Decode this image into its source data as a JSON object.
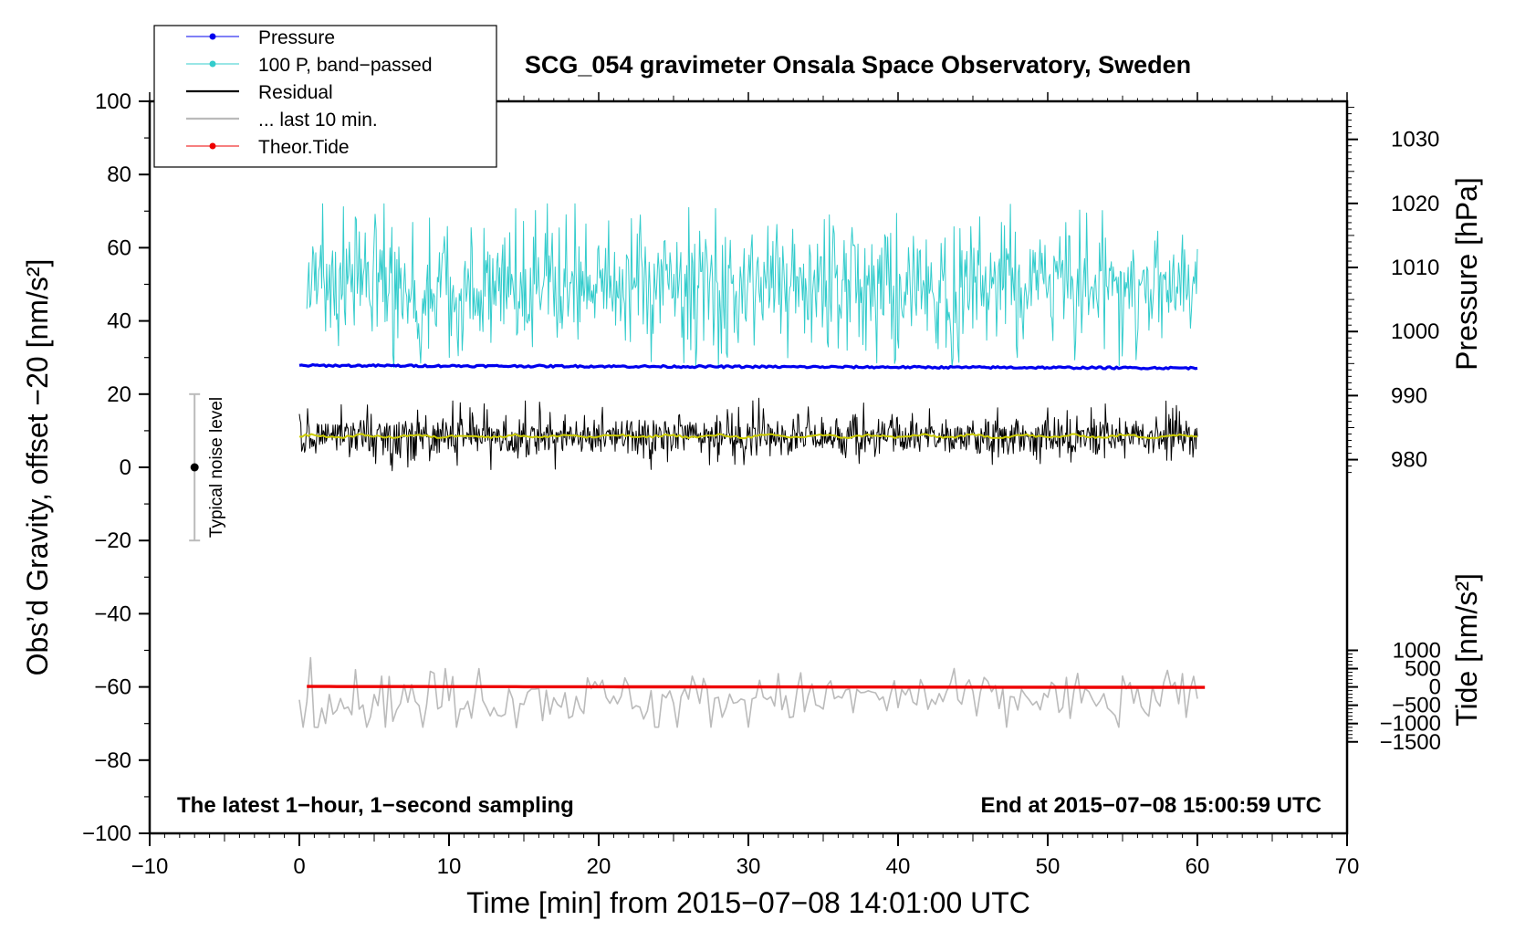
{
  "chart_data": {
    "type": "line",
    "title": "SCG_054 gravimeter Onsala Space Observatory, Sweden",
    "xlabel": "Time [min] from 2015−07−08 14:01:00 UTC",
    "ylabel_left": "Obs’d Gravity, offset −20 [nm/s²]",
    "ylabel_right_pressure": "Pressure [hPa]",
    "ylabel_right_tide": "Tide [nm/s²]",
    "xlim": [
      -10,
      70
    ],
    "ylim_left": [
      -100,
      100
    ],
    "xticks": [
      -10,
      0,
      10,
      20,
      30,
      40,
      50,
      60,
      70
    ],
    "xtick_labels": [
      "−10",
      "0",
      "10",
      "20",
      "30",
      "40",
      "50",
      "60",
      "70"
    ],
    "yticks_left": [
      -100,
      -80,
      -60,
      -40,
      -20,
      0,
      20,
      40,
      60,
      80,
      100
    ],
    "ytick_labels_left": [
      "−100",
      "−80",
      "−60",
      "−40",
      "−20",
      "0",
      "20",
      "40",
      "60",
      "80",
      "100"
    ],
    "pressure_axis": {
      "ticks": [
        980,
        990,
        1000,
        1010,
        1020,
        1030
      ],
      "tick_labels": [
        "980",
        "990",
        "1000",
        "1010",
        "1020",
        "1030"
      ],
      "scale": {
        "value_at_left0": 978.8,
        "per_left_unit": 0.5714
      }
    },
    "tide_axis": {
      "ticks": [
        -1500,
        -1000,
        -500,
        0,
        500,
        1000
      ],
      "tick_labels": [
        "−1500",
        "−1000",
        "−500",
        "0",
        "500",
        "1000"
      ],
      "scale": {
        "value_at_left0": 6000,
        "per_left_unit": 100
      }
    },
    "legend": {
      "position": "top-left",
      "entries": [
        {
          "label": "Pressure",
          "color": "#0000ee",
          "marker": true
        },
        {
          "label": "100 P, band−passed",
          "color": "#33cccc",
          "marker": true
        },
        {
          "label": "Residual",
          "color": "#000000",
          "marker": false
        },
        {
          "label": "... last 10 min.",
          "color": "#bbbbbb",
          "marker": false
        },
        {
          "label": "Theor.Tide",
          "color": "#ee0000",
          "marker": true
        }
      ]
    },
    "series": [
      {
        "name": "Pressure",
        "color": "#0000ee",
        "axis": "pressure",
        "x_range": [
          0,
          60
        ],
        "start": 994.7,
        "end": 994.3,
        "noise": 0.3
      },
      {
        "name": "100 P, band−passed",
        "color": "#33cccc",
        "axis": "left",
        "x_range": [
          0.5,
          60
        ],
        "center": 50,
        "amplitude": 9,
        "peak_min": 27,
        "peak_max": 72
      },
      {
        "name": "Residual",
        "color": "#000000",
        "axis": "left",
        "x_range": [
          0,
          60
        ],
        "center": 8.5,
        "amplitude": 3.5,
        "peak_min": -1,
        "peak_max": 19
      },
      {
        "name": "Residual smoothed",
        "color": "#cccc00",
        "axis": "left",
        "x_range": [
          0,
          60
        ],
        "center": 8.5,
        "amplitude": 0.6
      },
      {
        "name": "... last 10 min.",
        "color": "#bbbbbb",
        "axis": "left",
        "x_range": [
          0,
          60
        ],
        "center": -63,
        "amplitude": 3.5,
        "peak_min": -72,
        "peak_max": -52
      },
      {
        "name": "Theor.Tide",
        "color": "#ee0000",
        "axis": "tide",
        "x_range": [
          0.5,
          60.5
        ],
        "start": 12,
        "end": -12
      }
    ],
    "noise_indicator": {
      "label": "Typical noise level",
      "x": -7,
      "center": 0,
      "range": [
        -20,
        20
      ]
    },
    "annotations": {
      "bottom_left": "The latest 1−hour, 1−second sampling",
      "bottom_right": "End at 2015−07−08 15:00:59 UTC"
    }
  }
}
